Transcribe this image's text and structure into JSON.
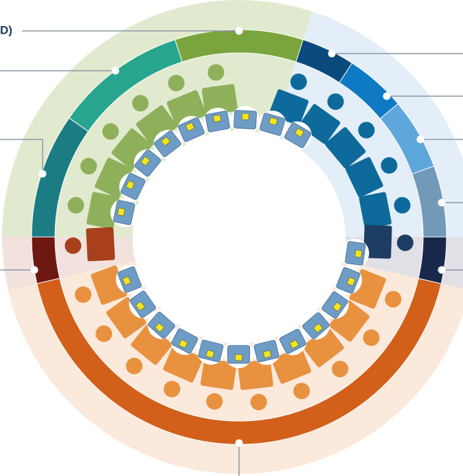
{
  "labels": [
    "D)"
  ]
}
